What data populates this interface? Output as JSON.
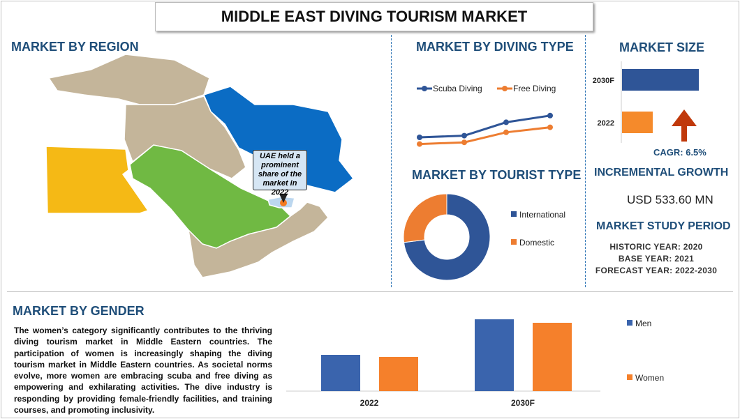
{
  "title": "MIDDLE EAST DIVING TOURISM MARKET",
  "region": {
    "heading": "MARKET BY REGION",
    "callout": "UAE held a prominent share of the market in 2022",
    "colors": {
      "egypt": "#f5b915",
      "saudi": "#70b943",
      "iran": "#0b6cc4",
      "other": "#c4b59a",
      "uae": "#bcd7ef",
      "marker": "#f47b20"
    }
  },
  "diving_type": {
    "heading": "MARKET BY DIVING TYPE"
  },
  "tourist_type": {
    "heading": "MARKET BY TOURIST TYPE"
  },
  "market_size": {
    "heading": "MARKET SIZE",
    "cagr": "CAGR:  6.5%",
    "arrow_icon": "up-arrow-icon"
  },
  "incremental": {
    "heading": "INCREMENTAL GROWTH",
    "value": "USD 533.60 MN"
  },
  "study": {
    "heading": "MARKET STUDY PERIOD",
    "historic": "HISTORIC YEAR: 2020",
    "base": "BASE YEAR: 2021",
    "forecast": "FORECAST YEAR: 2022-2030"
  },
  "gender": {
    "heading": "MARKET BY GENDER",
    "text": "The women’s category significantly contributes to the thriving diving tourism market in Middle Eastern countries. The participation of women is increasingly shaping the diving tourism market in Middle Eastern countries. As societal norms evolve, more women are embracing scuba and free diving as empowering and exhilarating activities. The dive industry is responding by providing female-friendly facilities, and training courses, and promoting inclusivity."
  },
  "chart_data": [
    {
      "type": "line",
      "series": [
        {
          "name": "Scuba Diving",
          "color": "#2f5597",
          "values": [
            1.0,
            1.1,
            1.9,
            2.3
          ]
        },
        {
          "name": "Free Diving",
          "color": "#ed7d31",
          "values": [
            0.6,
            0.7,
            1.3,
            1.6
          ]
        }
      ],
      "legend": "top",
      "grid": false
    },
    {
      "type": "pie",
      "donut": true,
      "categories": [
        "International",
        "Domestic"
      ],
      "values": [
        73,
        27
      ],
      "colors": [
        "#2f5597",
        "#ed7d31"
      ],
      "legend": "right"
    },
    {
      "type": "bar",
      "orientation": "horizontal",
      "categories": [
        "2030F",
        "2022"
      ],
      "values": [
        2.5,
        1.0
      ],
      "colors": [
        "#2f5597",
        "#f58a2b"
      ]
    },
    {
      "type": "bar",
      "categories": [
        "2022",
        "2030F"
      ],
      "series": [
        {
          "name": "Men",
          "color": "#3a64ad",
          "values": [
            52,
            103
          ]
        },
        {
          "name": "Women",
          "color": "#f5802b",
          "values": [
            49,
            98
          ]
        }
      ],
      "legend": "right",
      "grid": false
    }
  ]
}
